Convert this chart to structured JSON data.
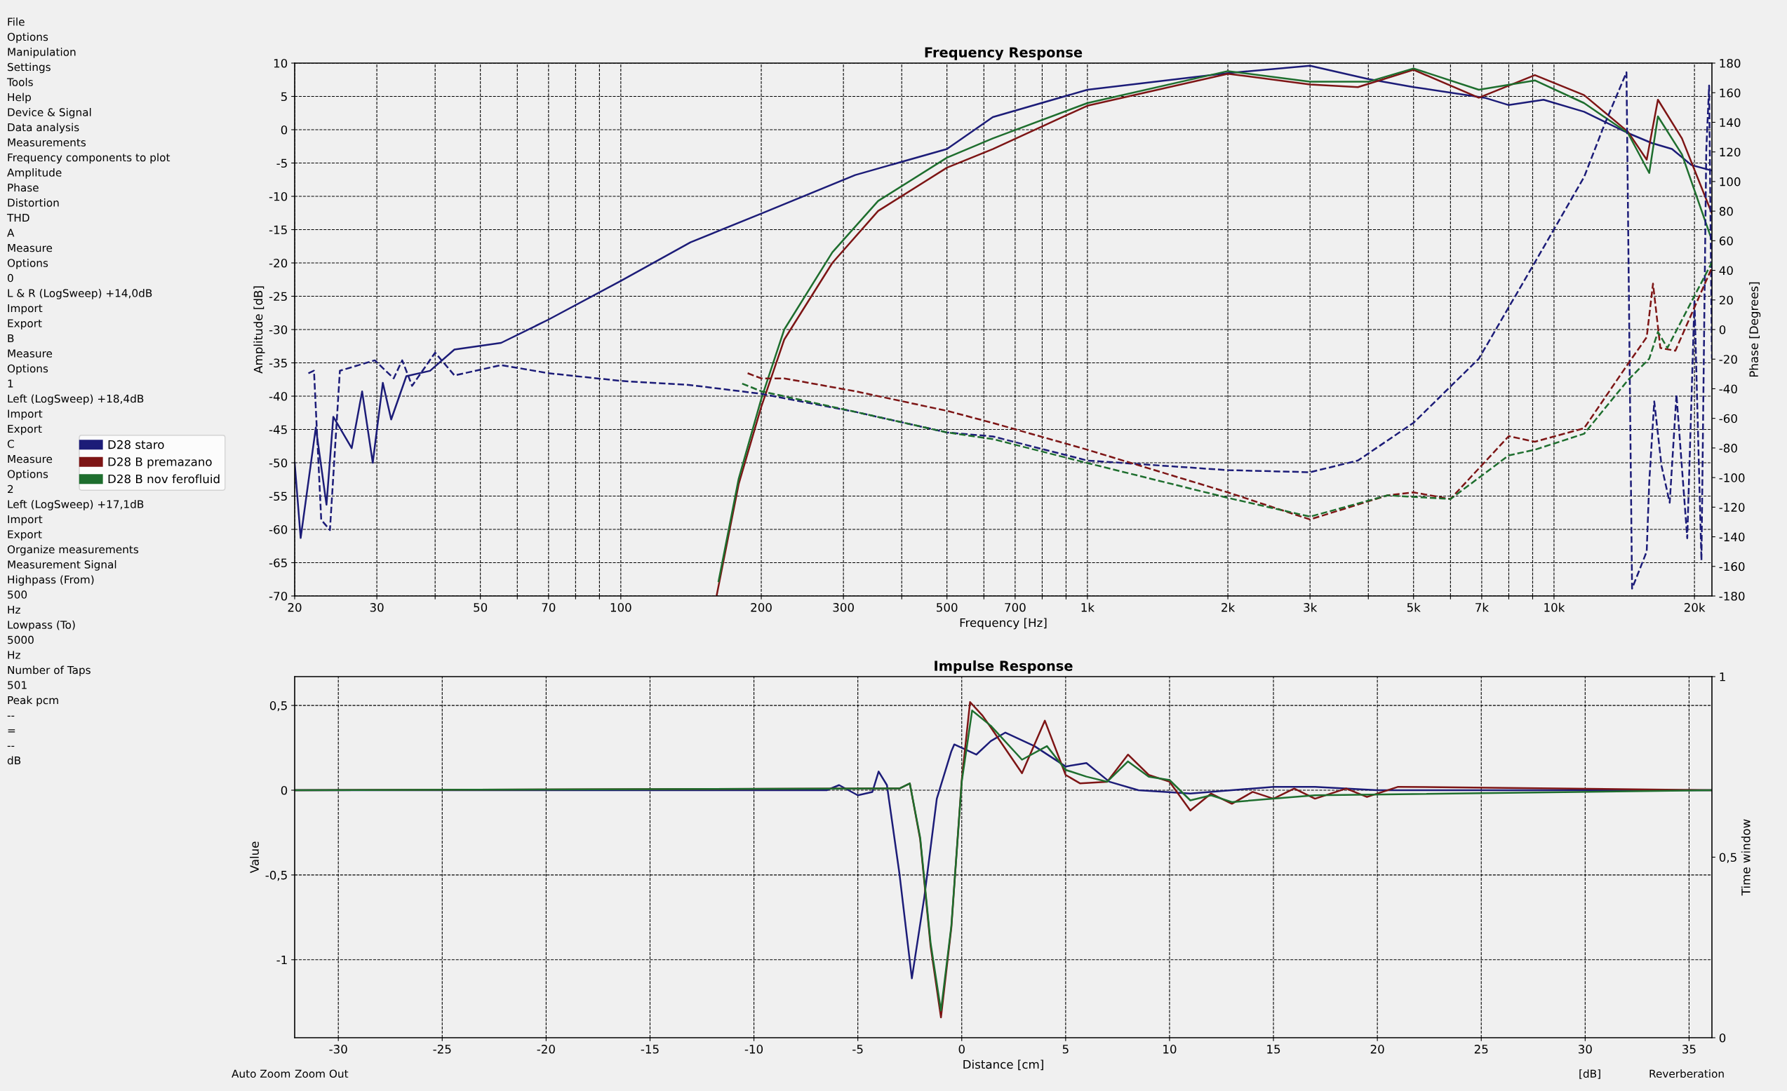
{
  "chart_data": [
    {
      "type": "line",
      "title": "Frequency Response",
      "xlabel": "Frequency [Hz]",
      "ylabel": "Amplitude [dB]",
      "y2label": "Phase [Degrees]",
      "log": "x",
      "grid": true,
      "legend": "left",
      "xlim": [
        20,
        21800
      ],
      "ylim": [
        -70,
        10
      ],
      "y2lim": [
        -180,
        180
      ],
      "xticks": [
        20,
        30,
        {
          "value": 40,
          "label": null
        },
        50,
        {
          "value": 60,
          "label": null
        },
        70,
        {
          "value": 80,
          "label": null
        },
        {
          "value": 90,
          "label": null
        },
        100,
        200,
        300,
        {
          "value": 400,
          "label": null
        },
        500,
        {
          "value": 600,
          "label": null
        },
        700,
        {
          "value": 800,
          "label": null
        },
        {
          "value": 900,
          "label": null
        },
        {
          "value": 1000,
          "label": "1k"
        },
        {
          "value": 2000,
          "label": "2k"
        },
        {
          "value": 3000,
          "label": "3k"
        },
        {
          "value": 4000,
          "label": null
        },
        {
          "value": 5000,
          "label": "5k"
        },
        {
          "value": 6000,
          "label": null
        },
        {
          "value": 7000,
          "label": "7k"
        },
        {
          "value": 8000,
          "label": null
        },
        {
          "value": 9000,
          "label": null
        },
        {
          "value": 10000,
          "label": "10k"
        },
        {
          "value": 20000,
          "label": "20k"
        }
      ],
      "yticks": [
        -70,
        -65,
        -60,
        -55,
        -50,
        -45,
        -40,
        -35,
        -30,
        -25,
        -20,
        -15,
        -10,
        -5,
        0,
        5,
        10
      ],
      "y2ticks": [
        -180,
        -160,
        -140,
        -120,
        -100,
        -80,
        -60,
        -40,
        -20,
        0,
        20,
        40,
        60,
        80,
        100,
        120,
        140,
        160,
        180
      ],
      "series": [
        {
          "name": "D28 staro",
          "color": "#1c1c78",
          "line_style": "solid",
          "x": [
            20,
            20.6,
            22.2,
            23.4,
            24.2,
            26.5,
            27.9,
            29.4,
            30.9,
            32.2,
            34.7,
            39,
            44,
            55.4,
            70,
            100,
            141,
            200,
            318,
            500,
            627,
            1000,
            2000,
            3000,
            4000,
            5000,
            7100,
            8000,
            9500,
            11600,
            14400,
            16200,
            17900,
            19700,
            21700
          ],
          "values": [
            -50,
            -61.3,
            -44.7,
            -56.3,
            -43.1,
            -47.8,
            -39.3,
            -50,
            -38,
            -43.5,
            -37,
            -36.2,
            -33,
            -32,
            -28.5,
            -22.7,
            -16.9,
            -12.6,
            -6.8,
            -2.9,
            1.9,
            6,
            8.5,
            9.6,
            7.6,
            6.4,
            4.8,
            3.7,
            4.5,
            2.7,
            -0.5,
            -2,
            -2.9,
            -5.3,
            -6.1
          ]
        },
        {
          "name": "D28 B premazano",
          "color": "#7d1515",
          "line_style": "solid",
          "x": [
            160.4,
            178.9,
            200,
            224,
            284,
            356,
            500,
            627,
            1000,
            2000,
            3000,
            3800,
            5000,
            6900,
            9100,
            11600,
            14400,
            15800,
            16700,
            18800,
            21800
          ],
          "values": [
            -70,
            -53.2,
            -41.6,
            -31.5,
            -20,
            -12.2,
            -5.7,
            -2.9,
            3.6,
            8.4,
            6.8,
            6.4,
            9,
            4.8,
            8.2,
            5.2,
            -0.3,
            -4.5,
            4.5,
            -1.3,
            -12.6
          ]
        },
        {
          "name": "D28 B nov ferofluid",
          "color": "#1e6e2e",
          "line_style": "solid",
          "x": [
            162,
            178.9,
            200,
            224,
            284,
            356,
            500,
            627,
            1000,
            2000,
            3000,
            4000,
            5000,
            6900,
            9100,
            11600,
            14400,
            16000,
            16700,
            18800,
            21800
          ],
          "values": [
            -67.8,
            -52.4,
            -40.4,
            -30,
            -18.4,
            -10.7,
            -4.2,
            -1.3,
            4,
            8.8,
            7.2,
            7.2,
            9.2,
            6,
            7.4,
            4,
            -0.5,
            -6.5,
            2,
            -3.7,
            -16.6
          ]
        },
        {
          "color": "#1c1c78",
          "line_style": "dashed",
          "axis": "y2",
          "x": [
            21.4,
            22,
            22.8,
            23.8,
            25,
            29.7,
            32.6,
            34,
            35.7,
            40,
            44,
            55.4,
            70,
            100,
            141,
            200,
            318,
            500,
            627,
            1000,
            2000,
            3000,
            3800,
            5000,
            6900,
            9100,
            11600,
            12800,
            14300,
            14700,
            15800,
            16000,
            16400,
            17000,
            17700,
            18300,
            19300,
            20000,
            20700,
            21200,
            21500,
            21800
          ],
          "values": [
            -29.5,
            -27.8,
            -128.5,
            -135.5,
            -27.8,
            -20.8,
            -33,
            -20.8,
            -38,
            -15.6,
            -31,
            -24,
            -29.5,
            -34.7,
            -37.5,
            -43.4,
            -55.6,
            -69.5,
            -72.2,
            -88.5,
            -95,
            -96.4,
            -88.5,
            -63,
            -19.7,
            45.4,
            103,
            137.7,
            173.8,
            -175,
            -150,
            -103,
            -48.6,
            -92,
            -117,
            -44,
            -141,
            19.9,
            -156,
            121,
            164.8,
            -19.7
          ]
        },
        {
          "color": "#7d1515",
          "line_style": "dashed",
          "axis": "y2",
          "x": [
            187,
            200,
            224,
            318,
            500,
            627,
            1000,
            2000,
            3000,
            4400,
            5000,
            6000,
            8000,
            9100,
            11600,
            14400,
            15800,
            16300,
            16900,
            18200,
            21800
          ],
          "values": [
            -29.5,
            -33,
            -33,
            -41.7,
            -54.9,
            -63.1,
            -81.2,
            -110,
            -128.3,
            -112,
            -110,
            -114.5,
            -72,
            -75.8,
            -66.7,
            -23.3,
            -5.2,
            31,
            -12.4,
            -14.3,
            41.8
          ]
        },
        {
          "color": "#1e6e2e",
          "line_style": "dashed",
          "axis": "y2",
          "x": [
            182,
            200,
            318,
            500,
            627,
            1000,
            2000,
            3000,
            4400,
            6000,
            8000,
            9100,
            11600,
            14400,
            16000,
            16700,
            17500,
            21800
          ],
          "values": [
            -36.5,
            -41.7,
            -55.6,
            -69.5,
            -74,
            -90.2,
            -113.7,
            -126.4,
            -112,
            -114.5,
            -85,
            -81.2,
            -70.4,
            -34.2,
            -19.7,
            -1.6,
            -12.4,
            45.4
          ]
        }
      ],
      "annotations": [
        "File",
        "Options",
        "Manipulation",
        "Settings",
        "Tools",
        "Help",
        "Device & Signal",
        "Data analysis",
        "Measurements",
        "Frequency components to plot",
        "Amplitude",
        "Phase",
        "Distortion",
        "THD",
        "A",
        "Measure",
        "Options",
        "0",
        "L & R (LogSweep) +14,0dB",
        "Import",
        "Export",
        "B",
        "Measure",
        "Options",
        "1",
        "Left (LogSweep) +18,4dB",
        "Import",
        "Export",
        "C",
        "Measure",
        "Options",
        "2",
        "Left (LogSweep) +17,1dB",
        "Import",
        "Export",
        "Organize measurements",
        "Measurement Signal",
        "Highpass (From)",
        "500",
        "Hz",
        "Lowpass (To)",
        "5000",
        "Hz",
        "Number of Taps",
        "501",
        "Peak pcm",
        "--",
        "=",
        "--",
        "dB"
      ]
    },
    {
      "type": "line",
      "title": "Impulse Response",
      "xlabel": "Distance [cm]",
      "ylabel": "Value",
      "y2label": "Time window",
      "grid": true,
      "xlim": [
        -32.1,
        36.1
      ],
      "ylim": [
        -1.46,
        0.67
      ],
      "y2lim": [
        0,
        1
      ],
      "xticks": [
        -30,
        -25,
        -20,
        -15,
        -10,
        -5,
        0,
        5,
        10,
        15,
        20,
        25,
        30,
        35
      ],
      "yticks": [
        -1,
        {
          "value": -0.5,
          "label": "-0,5"
        },
        0,
        {
          "value": 0.5,
          "label": "0,5"
        }
      ],
      "y2ticks": [
        0,
        {
          "value": 0.5,
          "label": "0,5"
        },
        1
      ],
      "series": [
        {
          "color": "#1c1c78",
          "x": [
            -32.1,
            -6.5,
            -5.9,
            -5,
            -4.3,
            -4,
            -3.6,
            -3,
            -2.4,
            -1.8,
            -1.2,
            -0.5,
            -0.36,
            0.7,
            1.4,
            2.1,
            3.5,
            5,
            6,
            7.1,
            8.5,
            11,
            15,
            17,
            20,
            36.1
          ],
          "values": [
            0,
            0,
            0.03,
            -0.03,
            -0.01,
            0.11,
            0.03,
            -0.49,
            -1.11,
            -0.63,
            -0.05,
            0.23,
            0.27,
            0.21,
            0.29,
            0.34,
            0.26,
            0.14,
            0.16,
            0.05,
            0,
            -0.02,
            0.02,
            0.02,
            0,
            0
          ]
        },
        {
          "color": "#7d1515",
          "x": [
            -32.1,
            -3,
            -2.5,
            -2,
            -1.5,
            -1,
            -0.5,
            0,
            0.4,
            1,
            1.4,
            2.9,
            4,
            5,
            5.7,
            7,
            8,
            9,
            10,
            11,
            12,
            13,
            14,
            15,
            16,
            17,
            18.5,
            19.5,
            21,
            36.1
          ],
          "values": [
            0,
            0.01,
            0.04,
            -0.29,
            -0.92,
            -1.34,
            -0.81,
            0.06,
            0.52,
            0.44,
            0.37,
            0.1,
            0.41,
            0.09,
            0.04,
            0.05,
            0.21,
            0.09,
            0.05,
            -0.12,
            -0.02,
            -0.08,
            -0.01,
            -0.05,
            0.01,
            -0.05,
            0.01,
            -0.04,
            0.02,
            0
          ]
        },
        {
          "color": "#1e6e2e",
          "x": [
            -32.1,
            -3,
            -2.5,
            -2,
            -1.5,
            -1,
            -0.5,
            0,
            0.5,
            1.4,
            2.9,
            4.1,
            5,
            6,
            7,
            8,
            9,
            10,
            11,
            12,
            13,
            15,
            17,
            36.1
          ],
          "values": [
            0,
            0.01,
            0.04,
            -0.28,
            -0.9,
            -1.3,
            -0.8,
            0.05,
            0.47,
            0.38,
            0.18,
            0.26,
            0.12,
            0.08,
            0.05,
            0.17,
            0.08,
            0.06,
            -0.06,
            -0.03,
            -0.07,
            -0.05,
            -0.03,
            0
          ]
        }
      ],
      "annotations": [
        "Auto Zoom",
        "Zoom Out",
        "[dB]",
        "Reverberation"
      ]
    }
  ]
}
